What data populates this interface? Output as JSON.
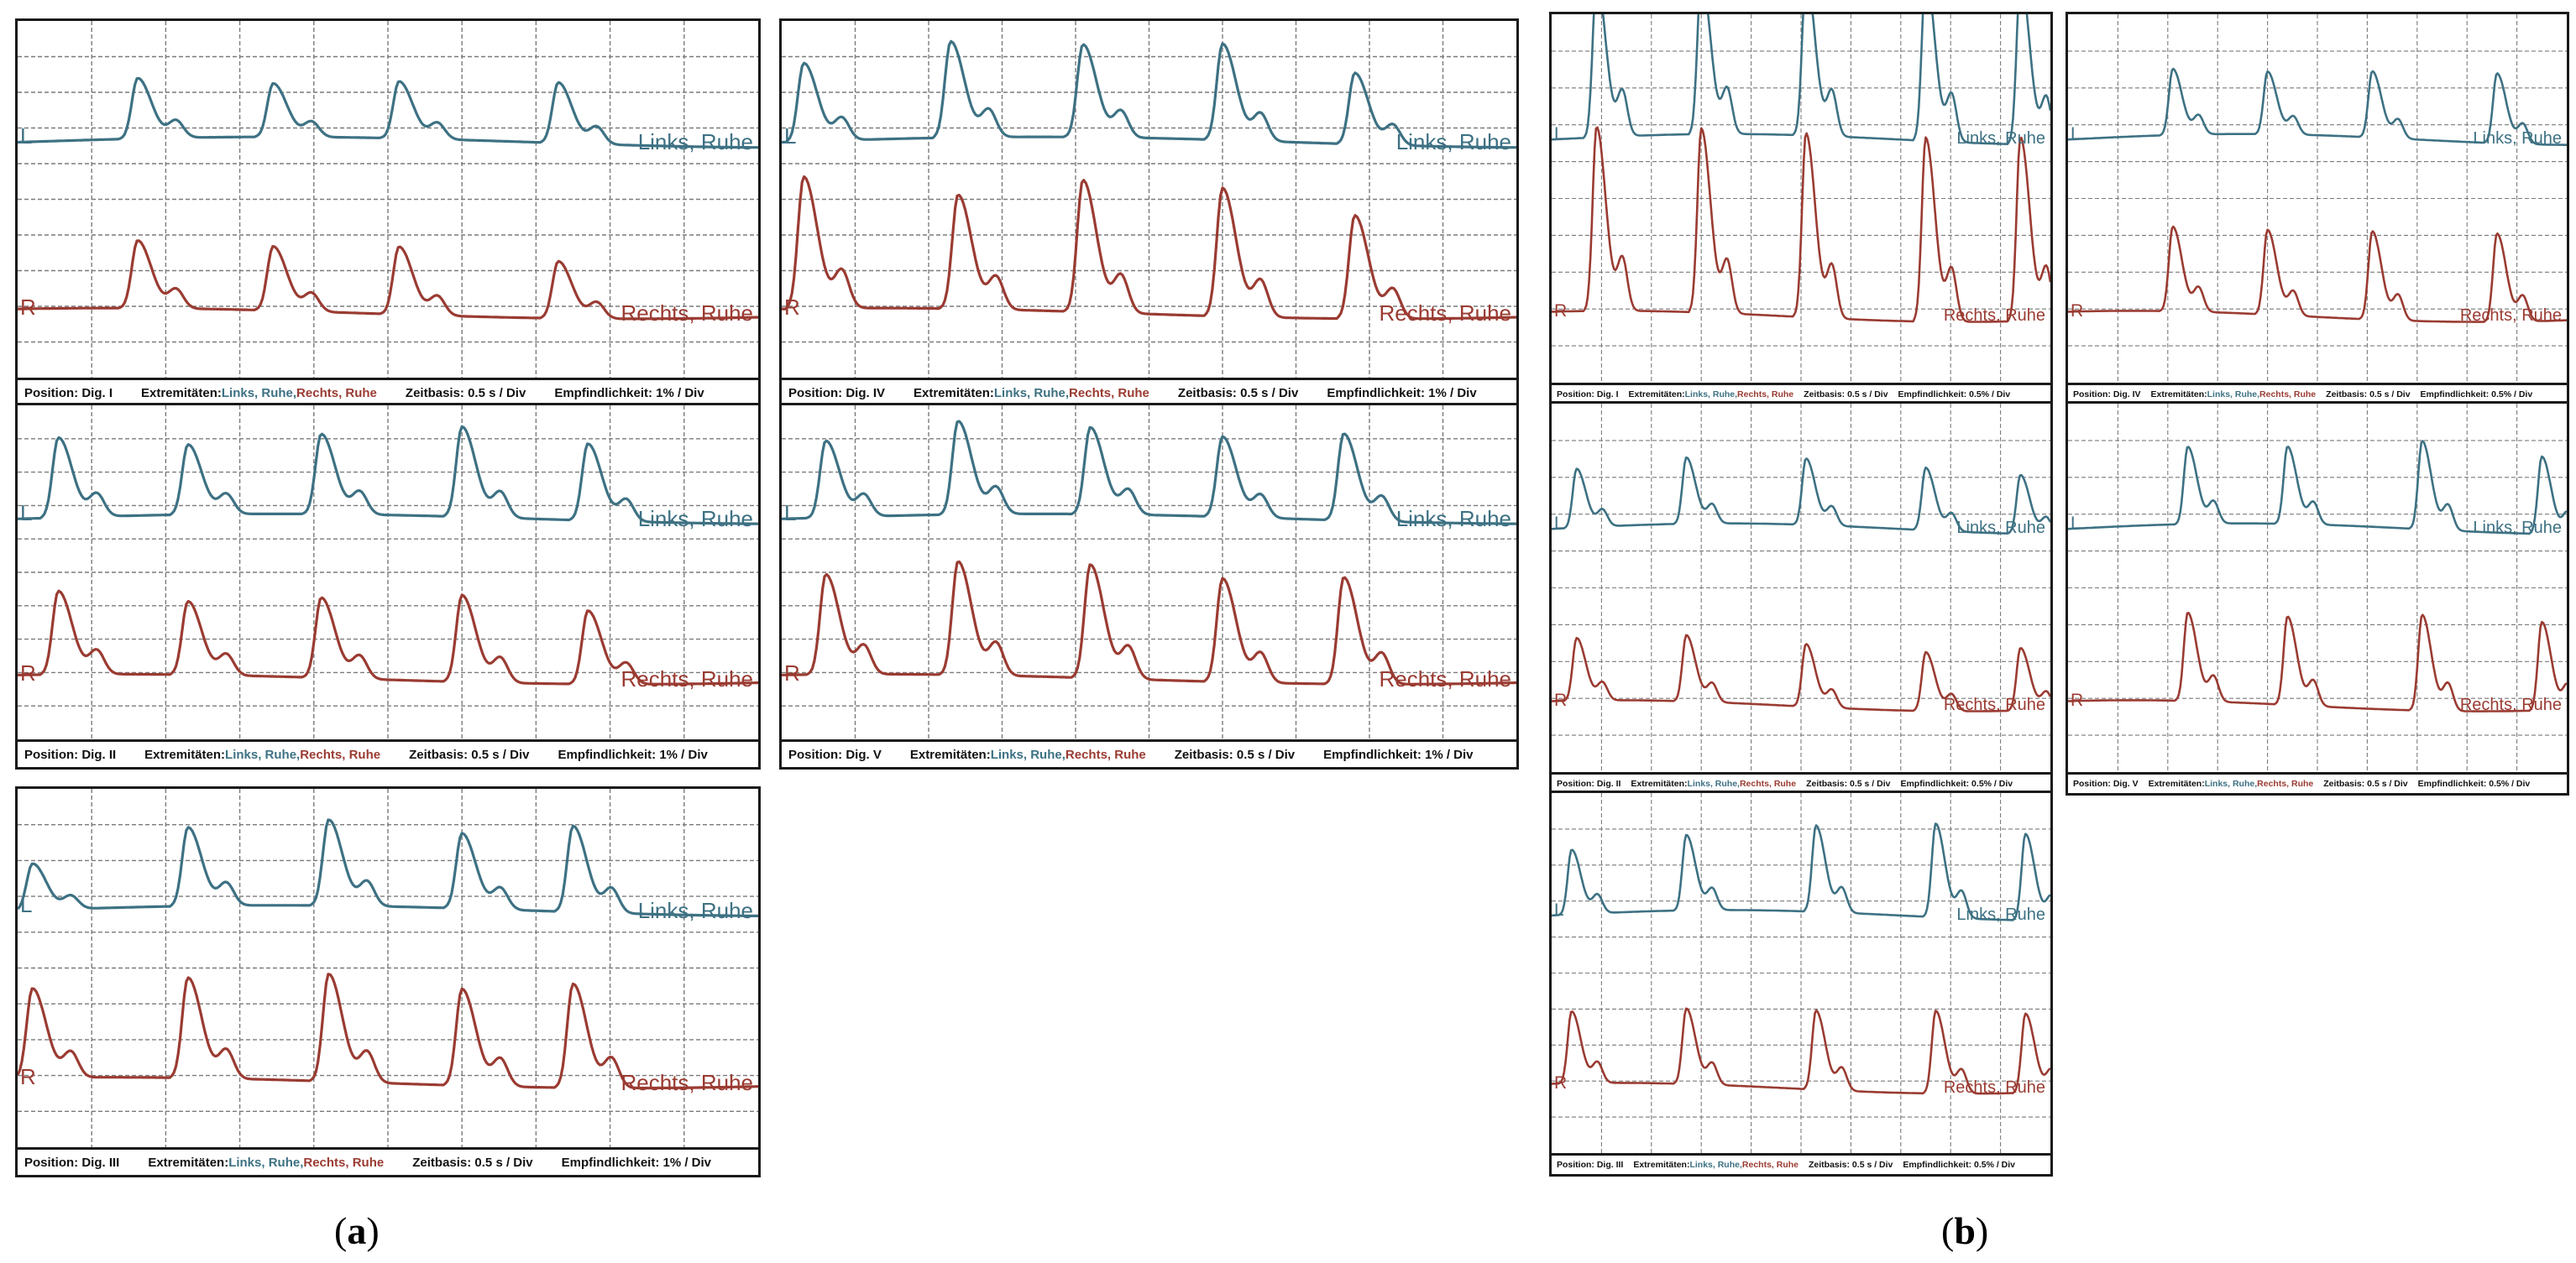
{
  "colors": {
    "links": "#3d7183",
    "rechts": "#9a3b32",
    "grid": "#7a7a7a",
    "border": "#1a1a1a"
  },
  "labels": {
    "fig_a": "a",
    "fig_b": "b",
    "links_short": "L",
    "rechts_short": "R",
    "links_trace": "Links, Ruhe",
    "rechts_trace": "Rechts, Ruhe",
    "extremitaeten": "Extremitäten:",
    "links_footer": "Links, Ruhe",
    "comma": ", ",
    "rechts_footer": "Rechts, Ruhe",
    "zeitbasis": "Zeitbasis: 0.5 s / Div",
    "empf_a": "Empfindlichkeit: 1% / Div",
    "empf_b": "Empfindlichkeit: 0.5% / Div"
  },
  "panels": [
    {
      "group": "a",
      "position": "Position: Dig. I",
      "sensitivity_label": "empf_a"
    },
    {
      "group": "a",
      "position": "Position: Dig. IV",
      "sensitivity_label": "empf_a"
    },
    {
      "group": "a",
      "position": "Position: Dig. II",
      "sensitivity_label": "empf_a"
    },
    {
      "group": "a",
      "position": "Position: Dig. V",
      "sensitivity_label": "empf_a"
    },
    {
      "group": "a",
      "position": "Position: Dig. III",
      "sensitivity_label": "empf_a"
    },
    {
      "group": "b",
      "position": "Position: Dig. I",
      "sensitivity_label": "empf_b"
    },
    {
      "group": "b",
      "position": "Position: Dig. IV",
      "sensitivity_label": "empf_b"
    },
    {
      "group": "b",
      "position": "Position: Dig. II",
      "sensitivity_label": "empf_b"
    },
    {
      "group": "b",
      "position": "Position: Dig. V",
      "sensitivity_label": "empf_b"
    },
    {
      "group": "b",
      "position": "Position: Dig. III",
      "sensitivity_label": "empf_b"
    }
  ],
  "chart_data": [
    {
      "type": "line",
      "panel": "a / Position: Dig. I",
      "time_base": "0.5 s / Div",
      "sensitivity": "1% / Div",
      "series": [
        {
          "name": "Links, Ruhe",
          "peak_times": [
            1.62,
            3.45,
            5.15,
            7.3
          ],
          "amplitudes": [
            1.7,
            1.5,
            1.6,
            1.7
          ]
        },
        {
          "name": "Rechts, Ruhe",
          "peak_times": [
            1.62,
            3.45,
            5.15,
            7.3
          ],
          "amplitudes": [
            1.9,
            1.8,
            1.9,
            1.6
          ]
        }
      ]
    },
    {
      "type": "line",
      "panel": "a / Position: Dig. IV",
      "time_base": "0.5 s / Div",
      "sensitivity": "1% / Div",
      "series": [
        {
          "name": "Links, Ruhe",
          "peak_times": [
            0.3,
            2.3,
            4.1,
            6.0,
            7.8
          ],
          "amplitudes": [
            2.2,
            2.7,
            2.6,
            2.7,
            2.0
          ]
        },
        {
          "name": "Rechts, Ruhe",
          "peak_times": [
            0.3,
            2.4,
            4.1,
            6.0,
            7.8
          ],
          "amplitudes": [
            3.7,
            3.2,
            3.7,
            3.6,
            2.9
          ]
        }
      ]
    },
    {
      "type": "line",
      "panel": "a / Position: Dig. II",
      "time_base": "0.5 s / Div",
      "sensitivity": "1% / Div",
      "series": [
        {
          "name": "Links, Ruhe",
          "peak_times": [
            0.55,
            2.3,
            4.1,
            6.0,
            7.7
          ],
          "amplitudes": [
            2.4,
            2.1,
            2.4,
            2.7,
            2.3
          ]
        },
        {
          "name": "Rechts, Ruhe",
          "peak_times": [
            0.55,
            2.3,
            4.1,
            6.0,
            7.7
          ],
          "amplitudes": [
            2.5,
            2.2,
            2.4,
            2.6,
            2.2
          ]
        }
      ]
    },
    {
      "type": "line",
      "panel": "a / Position: Dig. V",
      "time_base": "0.5 s / Div",
      "sensitivity": "1% / Div",
      "series": [
        {
          "name": "Links, Ruhe",
          "peak_times": [
            0.6,
            2.4,
            4.2,
            6.0,
            7.65
          ],
          "amplitudes": [
            2.3,
            2.8,
            2.6,
            2.4,
            2.6
          ]
        },
        {
          "name": "Rechts, Ruhe",
          "peak_times": [
            0.6,
            2.4,
            4.2,
            6.0,
            7.65
          ],
          "amplitudes": [
            3.0,
            3.4,
            3.4,
            3.1,
            3.2
          ]
        }
      ]
    },
    {
      "type": "line",
      "panel": "a / Position: Dig. III",
      "time_base": "0.5 s / Div",
      "sensitivity": "1% / Div",
      "series": [
        {
          "name": "Links, Ruhe",
          "peak_times": [
            0.2,
            2.3,
            4.2,
            6.0,
            7.5
          ],
          "amplitudes": [
            1.3,
            2.2,
            2.4,
            2.1,
            2.4
          ]
        },
        {
          "name": "Rechts, Ruhe",
          "peak_times": [
            0.2,
            2.3,
            4.2,
            6.0,
            7.5
          ],
          "amplitudes": [
            2.5,
            2.8,
            3.0,
            2.7,
            2.9
          ]
        }
      ]
    },
    {
      "type": "line",
      "panel": "b / Position: Dig. I",
      "time_base": "0.5 s / Div",
      "sensitivity": "0.5% / Div",
      "series": [
        {
          "name": "Links, Ruhe",
          "peak_times": [
            0.45,
            1.5,
            2.55,
            3.75,
            4.7
          ],
          "amplitudes": [
            4.3,
            4.3,
            4.3,
            4.5,
            4.5
          ]
        },
        {
          "name": "Rechts, Ruhe",
          "peak_times": [
            0.45,
            1.5,
            2.55,
            3.75,
            4.7
          ],
          "amplitudes": [
            5.0,
            5.0,
            5.0,
            5.0,
            5.0
          ]
        }
      ]
    },
    {
      "type": "line",
      "panel": "b / Position: Dig. IV",
      "time_base": "0.5 s / Div",
      "sensitivity": "0.5% / Div",
      "series": [
        {
          "name": "Links, Ruhe",
          "peak_times": [
            1.05,
            2.0,
            3.05,
            4.3
          ],
          "amplitudes": [
            1.8,
            1.7,
            1.8,
            1.9
          ]
        },
        {
          "name": "Rechts, Ruhe",
          "peak_times": [
            1.05,
            2.0,
            3.05,
            4.3
          ],
          "amplitudes": [
            2.3,
            2.3,
            2.4,
            2.4
          ]
        }
      ]
    },
    {
      "type": "line",
      "panel": "b / Position: Dig. II",
      "time_base": "0.5 s / Div",
      "sensitivity": "0.5% / Div",
      "series": [
        {
          "name": "Links, Ruhe",
          "peak_times": [
            0.25,
            1.35,
            2.55,
            3.75,
            4.7
          ],
          "amplitudes": [
            1.6,
            1.8,
            1.8,
            1.7,
            1.6
          ]
        },
        {
          "name": "Rechts, Ruhe",
          "peak_times": [
            0.25,
            1.35,
            2.55,
            3.75,
            4.7
          ],
          "amplitudes": [
            1.7,
            1.8,
            1.7,
            1.6,
            1.7
          ]
        }
      ]
    },
    {
      "type": "line",
      "panel": "b / Position: Dig. V",
      "time_base": "0.5 s / Div",
      "sensitivity": "0.5% / Div",
      "series": [
        {
          "name": "Links, Ruhe",
          "peak_times": [
            1.2,
            2.2,
            3.55,
            4.75
          ],
          "amplitudes": [
            2.1,
            2.1,
            2.4,
            2.1
          ]
        },
        {
          "name": "Rechts, Ruhe",
          "peak_times": [
            1.2,
            2.2,
            3.55,
            4.75
          ],
          "amplitudes": [
            2.4,
            2.4,
            2.6,
            2.4
          ]
        }
      ]
    },
    {
      "type": "line",
      "panel": "b / Position: Dig. III",
      "time_base": "0.5 s / Div",
      "sensitivity": "0.5% / Div",
      "series": [
        {
          "name": "Links, Ruhe",
          "peak_times": [
            0.2,
            1.35,
            2.65,
            3.85,
            4.75
          ],
          "amplitudes": [
            1.8,
            2.1,
            2.4,
            2.6,
            2.4
          ]
        },
        {
          "name": "Rechts, Ruhe",
          "peak_times": [
            0.2,
            1.35,
            2.65,
            3.85,
            4.75
          ],
          "amplitudes": [
            2.0,
            2.1,
            2.2,
            2.3,
            2.2
          ]
        }
      ]
    }
  ]
}
